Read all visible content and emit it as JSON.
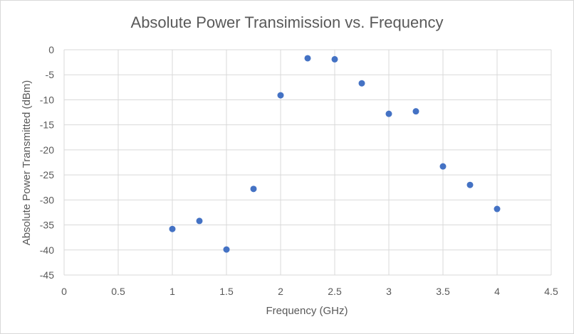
{
  "chart_data": {
    "type": "scatter",
    "title": "Absolute Power Transimission vs. Frequency",
    "xlabel": "Frequency (GHz)",
    "ylabel": "Absolute Power Transmitted (dBm)",
    "xlim": [
      0,
      4.5
    ],
    "ylim": [
      -45,
      0
    ],
    "xticks": [
      0,
      0.5,
      1,
      1.5,
      2,
      2.5,
      3,
      3.5,
      4,
      4.5
    ],
    "yticks": [
      0,
      -5,
      -10,
      -15,
      -20,
      -25,
      -30,
      -35,
      -40,
      -45
    ],
    "xtick_labels": [
      "0",
      "0.5",
      "1",
      "1.5",
      "2",
      "2.5",
      "3",
      "3.5",
      "4",
      "4.5"
    ],
    "ytick_labels": [
      "0",
      "-5",
      "-10",
      "-15",
      "-20",
      "-25",
      "-30",
      "-35",
      "-40",
      "-45"
    ],
    "grid": true,
    "legend": false,
    "marker_color": "#4472c4",
    "gridline_color": "#d9d9d9",
    "text_color": "#595959",
    "series": [
      {
        "x": [
          1,
          1.25,
          1.5,
          1.75,
          2,
          2.25,
          2.5,
          2.75,
          3,
          3.25,
          3.5,
          3.75,
          4
        ],
        "y": [
          -35.8,
          -34.2,
          -39.9,
          -27.8,
          -9.1,
          -1.7,
          -1.9,
          -6.7,
          -12.8,
          -12.3,
          -23.3,
          -27.0,
          -31.8
        ]
      }
    ]
  }
}
